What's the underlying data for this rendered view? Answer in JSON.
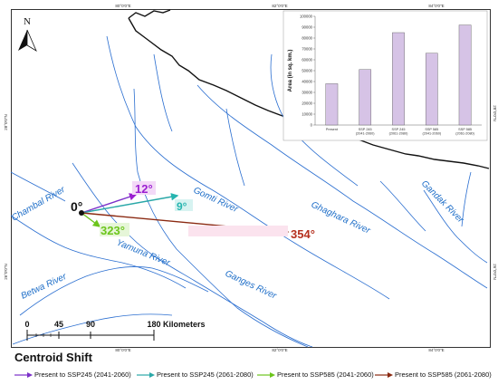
{
  "north_arrow": {
    "label": "N"
  },
  "graticule": {
    "top": [
      "80°0'0\"E",
      "82°0'0\"E",
      "84°0'0\"E"
    ],
    "bottom": [
      "80°0'0\"E",
      "82°0'0\"E",
      "84°0'0\"E"
    ],
    "left": [
      "28°0'0\"N",
      "26°0'0\"N"
    ],
    "right": [
      "28°0'0\"N",
      "26°0'0\"N"
    ]
  },
  "rivers": {
    "gomti": "Gomti River",
    "ghaghara": "Ghaghara River",
    "gandak": "Gandak River",
    "chambal": "Chambal River",
    "yamuna": "Yamuna River",
    "ganges": "Ganges River",
    "betwa": "Betwa River"
  },
  "shift": {
    "origin_label": "0°",
    "vectors": [
      {
        "angle_label": "12°",
        "color": "#9b1fd1"
      },
      {
        "angle_label": "9°",
        "color": "#27b5b0"
      },
      {
        "angle_label": "323°",
        "color": "#6cc51c"
      },
      {
        "angle_label": "354°",
        "color": "#b5301e"
      }
    ]
  },
  "scale_bar": {
    "ticks": [
      "0",
      "45",
      "90",
      "180"
    ],
    "unit": "Kilometers"
  },
  "legend": {
    "title": "Centroid Shift",
    "items": [
      {
        "label": "Present to SSP245 (2041-2060)",
        "color": "#7b2fc9"
      },
      {
        "label": "Present to SSP245 (2061-2080)",
        "color": "#2aa8a8"
      },
      {
        "label": "Present to SSP585 (2041-2060)",
        "color": "#6cc51c"
      },
      {
        "label": "Present to SSP585 (2061-2080)",
        "color": "#8b2a12"
      }
    ]
  },
  "chart_data": {
    "type": "bar",
    "categories": [
      "Present",
      "SSP 245 (2041-2060)",
      "SSP 245 (2061-2080)",
      "SSP 585 (2041-2060)",
      "SSP 585 (2061-2080)"
    ],
    "values": [
      38000,
      51000,
      85000,
      66000,
      92000
    ],
    "ylabel": "Area (in sq. km.)",
    "yticks": [
      "0",
      "10000",
      "20000",
      "30000",
      "40000",
      "50000",
      "60000",
      "70000",
      "80000",
      "90000",
      "100000"
    ],
    "ylim": [
      0,
      100000
    ],
    "bar_color": "#d6c3e6"
  }
}
